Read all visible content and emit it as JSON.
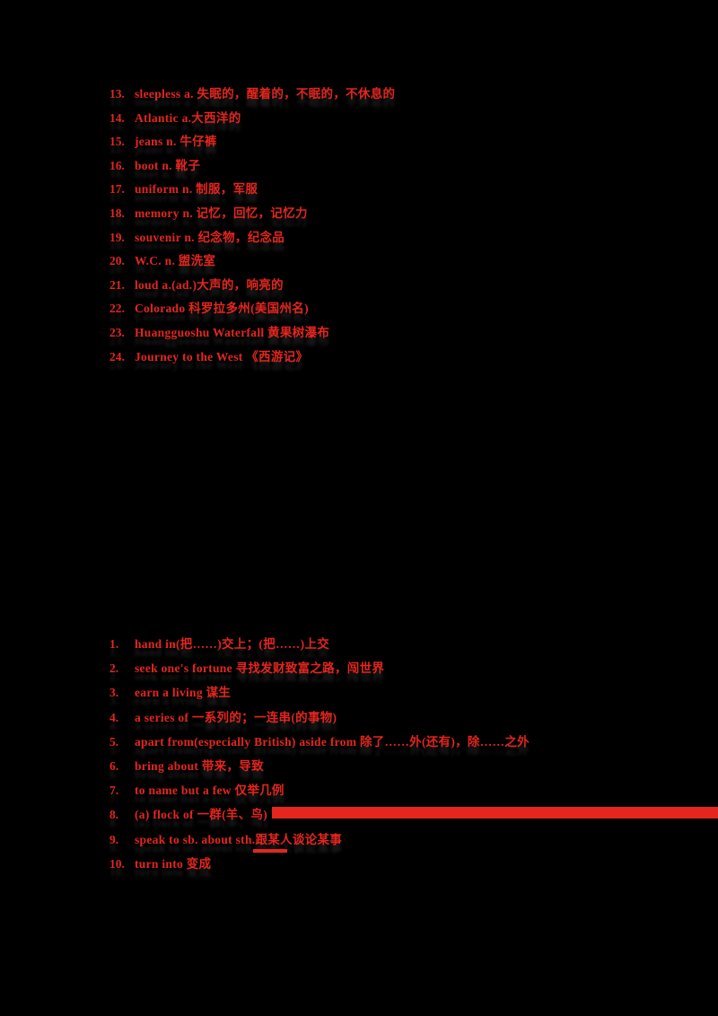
{
  "page": {
    "background_color": "#000000",
    "ink_color": "#e4261e"
  },
  "top_list": {
    "items": [
      {
        "num": "13.",
        "text": "sleepless a. 失眠的，醒着的，不眠的，不休息的"
      },
      {
        "num": "14.",
        "text": "Atlantic a.大西洋的"
      },
      {
        "num": "15.",
        "text": "jeans n. 牛仔裤"
      },
      {
        "num": "16.",
        "text": "boot n. 靴子"
      },
      {
        "num": "17.",
        "text": "uniform n. 制服，军服"
      },
      {
        "num": "18.",
        "text": "memory n. 记忆，回忆，记忆力"
      },
      {
        "num": "19.",
        "text": "souvenir n. 纪念物，纪念品"
      },
      {
        "num": "20.",
        "text": "W.C. n. 盥洗室"
      },
      {
        "num": "21.",
        "text": "loud a.(ad.)大声的，响亮的"
      },
      {
        "num": "22.",
        "text": "Colorado 科罗拉多州(美国州名)"
      },
      {
        "num": "23.",
        "text": "Huangguoshu Waterfall 黄果树瀑布"
      },
      {
        "num": "24.",
        "text": "Journey to the West 《西游记》"
      }
    ]
  },
  "bottom_list": {
    "items": [
      {
        "num": "1.",
        "text": "hand in(把……)交上；(把……)上交"
      },
      {
        "num": "2.",
        "text": "seek one's fortune 寻找发财致富之路，闯世界"
      },
      {
        "num": "3.",
        "text": "earn a living 谋生"
      },
      {
        "num": "4.",
        "text": "a series of 一系列的；一连串(的事物)"
      },
      {
        "num": "5.",
        "text": "apart from(especially British) aside from 除了……外(还有)，除……之外"
      },
      {
        "num": "6.",
        "text": "bring about 带来，导致"
      },
      {
        "num": "7.",
        "text": "to name but a few 仅举几例"
      },
      {
        "num": "8.",
        "text": "(a) flock of 一群(羊、鸟)"
      },
      {
        "num": "9.",
        "text": "speak to sb. about sth.跟某人谈论某事"
      },
      {
        "num": "10.",
        "text": "turn into 变成"
      }
    ]
  },
  "decorations": {
    "highlight_bar_color": "#e4261e",
    "underline_mark_color": "#e4261e"
  }
}
